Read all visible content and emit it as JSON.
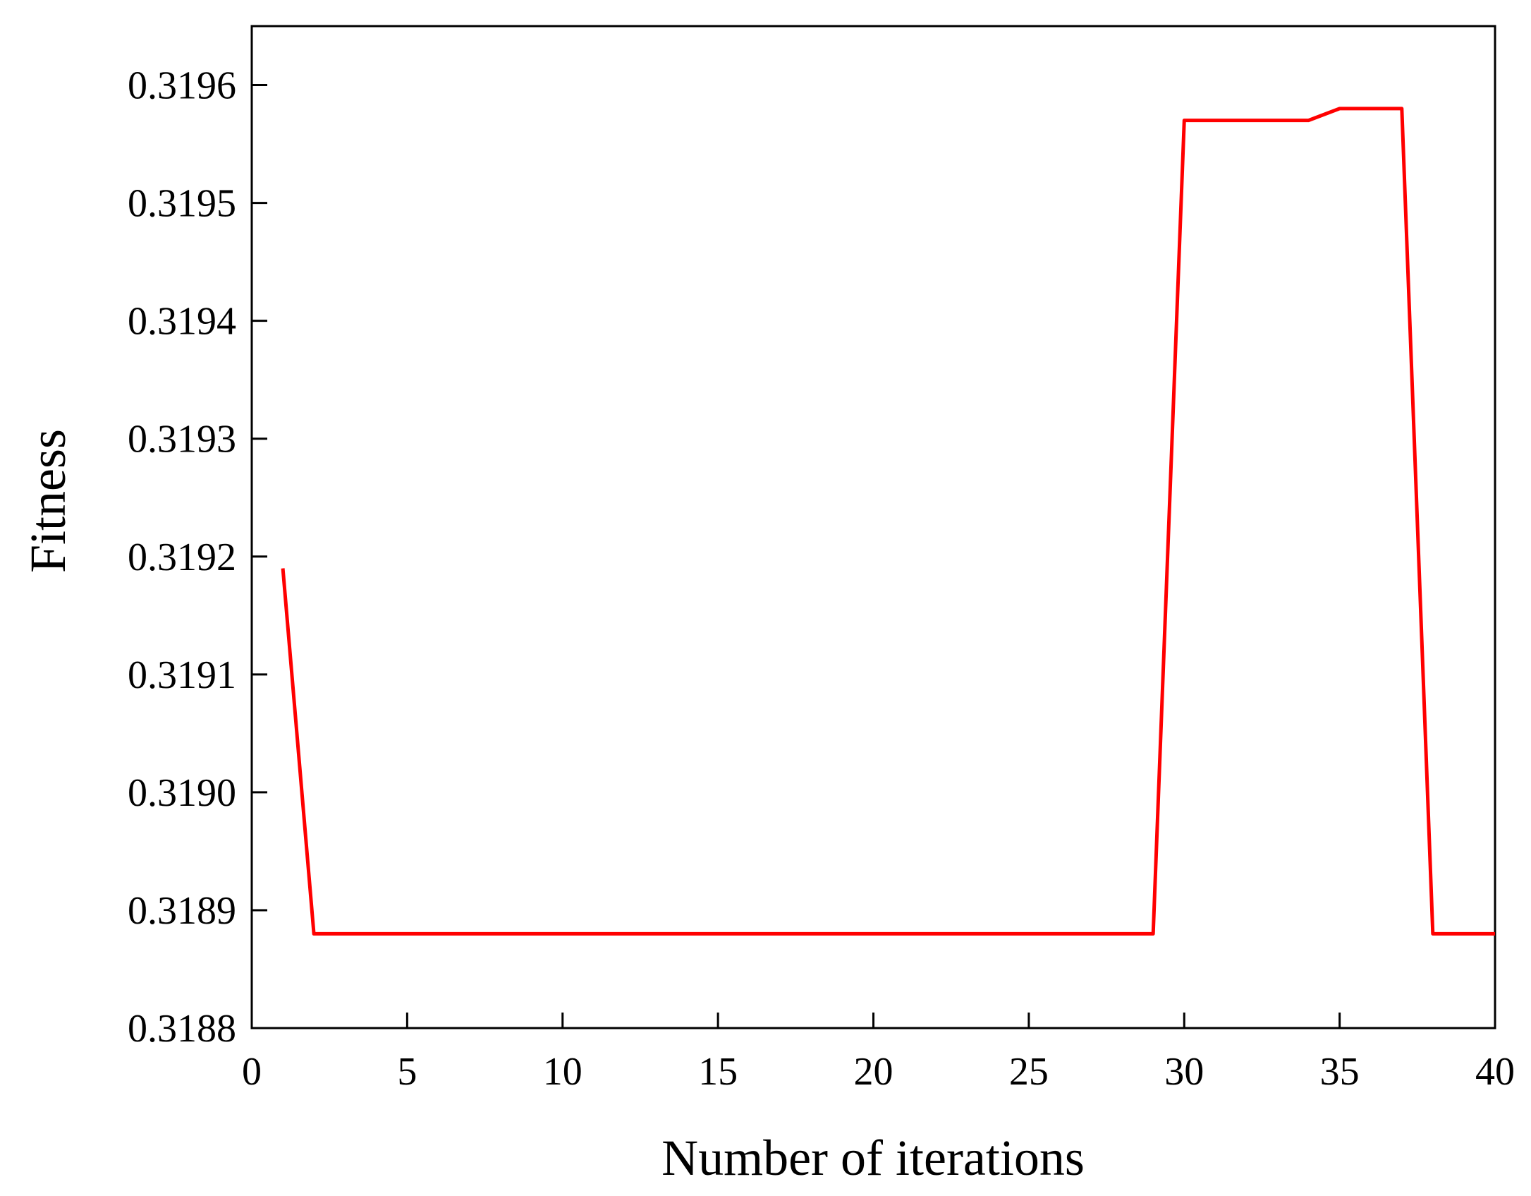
{
  "chart_data": {
    "type": "line",
    "title": "",
    "xlabel": "Number of iterations",
    "ylabel": "Fitness",
    "xlim": [
      0,
      40
    ],
    "ylim": [
      0.3188,
      0.31965
    ],
    "xticks": [
      0,
      5,
      10,
      15,
      20,
      25,
      30,
      35,
      40
    ],
    "yticks": [
      "0.3188",
      "0.3189",
      "0.3190",
      "0.3191",
      "0.3192",
      "0.3193",
      "0.3194",
      "0.3195",
      "0.3196"
    ],
    "grid": false,
    "legend": "none",
    "series": [
      {
        "color": "#ff0000",
        "x": [
          1,
          2,
          3,
          4,
          5,
          6,
          7,
          8,
          9,
          10,
          11,
          12,
          13,
          14,
          15,
          16,
          17,
          18,
          19,
          20,
          21,
          22,
          23,
          24,
          25,
          26,
          27,
          28,
          29,
          30,
          31,
          32,
          33,
          34,
          35,
          36,
          37,
          38,
          39,
          40
        ],
        "y": [
          0.31919,
          0.31888,
          0.31888,
          0.31888,
          0.31888,
          0.31888,
          0.31888,
          0.31888,
          0.31888,
          0.31888,
          0.31888,
          0.31888,
          0.31888,
          0.31888,
          0.31888,
          0.31888,
          0.31888,
          0.31888,
          0.31888,
          0.31888,
          0.31888,
          0.31888,
          0.31888,
          0.31888,
          0.31888,
          0.31888,
          0.31888,
          0.31888,
          0.31888,
          0.31957,
          0.31957,
          0.31957,
          0.31957,
          0.31957,
          0.31958,
          0.31958,
          0.31958,
          0.31888,
          0.31888,
          0.31888
        ]
      }
    ]
  }
}
